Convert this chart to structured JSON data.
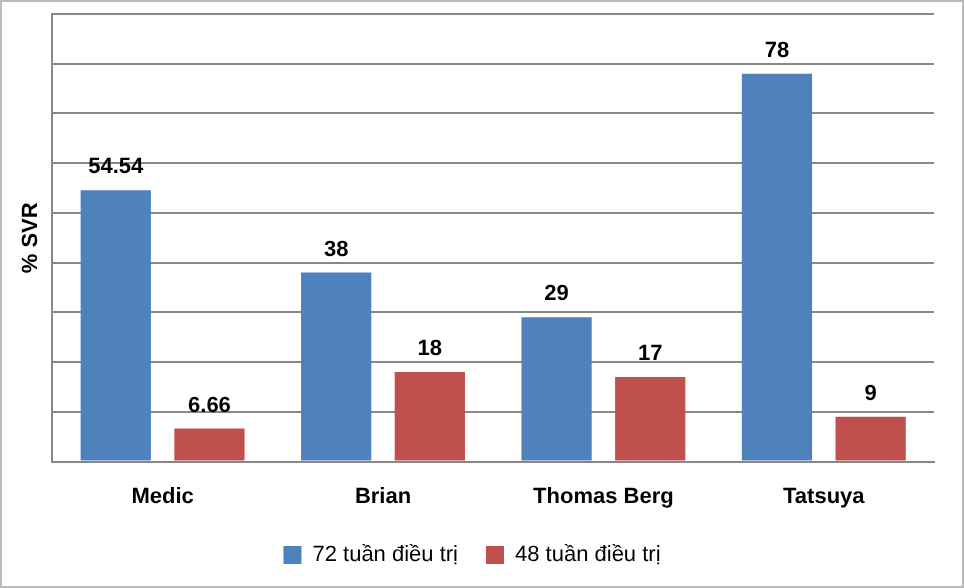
{
  "chart_data": {
    "type": "bar",
    "ylabel": "% SVR",
    "categories": [
      "Medic",
      "Brian",
      "Thomas Berg",
      "Tatsuya"
    ],
    "series": [
      {
        "name": "72 tuần điều trị",
        "color": "#4f81bd",
        "values": [
          54.54,
          38,
          29,
          78
        ]
      },
      {
        "name": "48 tuần điều trị",
        "color": "#c0504d",
        "values": [
          6.66,
          18,
          17,
          9
        ]
      }
    ],
    "ylim": [
      0,
      90
    ],
    "yticks": [
      {
        "value": 0,
        "label": null
      },
      {
        "value": 10,
        "label": null
      },
      {
        "value": 20,
        "label": null
      },
      {
        "value": 30,
        "label": null
      },
      {
        "value": 40,
        "label": null
      },
      {
        "value": 50,
        "label": null
      },
      {
        "value": 60,
        "label": null
      },
      {
        "value": 70,
        "label": null
      },
      {
        "value": 80,
        "label": null
      },
      {
        "value": 90,
        "label": null
      }
    ],
    "tick_labels": "x",
    "grid": "y",
    "legend": "bottom",
    "data_labels": true
  }
}
